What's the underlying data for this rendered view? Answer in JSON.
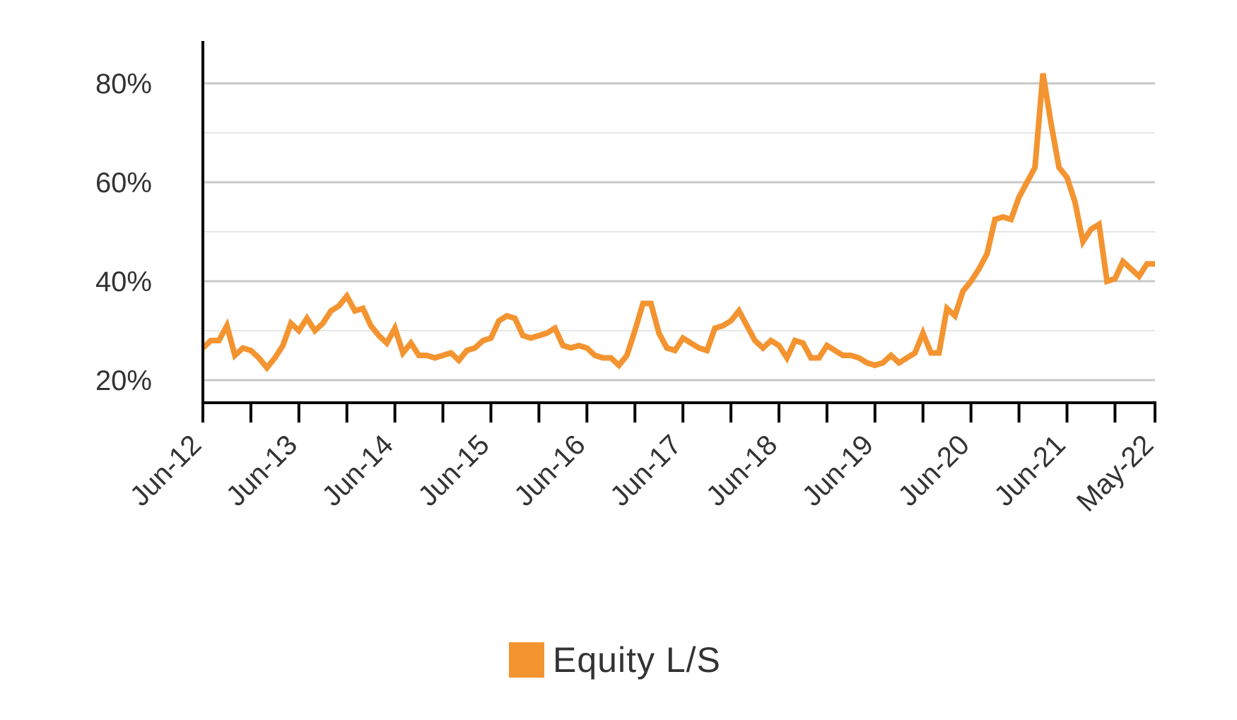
{
  "chart_data": {
    "type": "line",
    "title": "",
    "xlabel": "",
    "ylabel": "",
    "y_ticks": [
      "20%",
      "40%",
      "60%",
      "80%"
    ],
    "y_tick_values": [
      20,
      40,
      60,
      80
    ],
    "ylim": [
      15,
      88
    ],
    "x_tick_labels": [
      "Jun-12",
      "Jun-13",
      "Jun-14",
      "Jun-15",
      "Jun-16",
      "Jun-17",
      "Jun-18",
      "Jun-19",
      "Jun-20",
      "Jun-21",
      "May-22"
    ],
    "grid": true,
    "legend_position": "bottom-center",
    "series": [
      {
        "name": "Equity L/S",
        "color": "#F39430",
        "values": [
          26.5,
          28,
          28,
          31,
          25,
          26.5,
          26,
          24.5,
          22.5,
          24.5,
          27,
          31.5,
          30,
          32.5,
          30,
          31.5,
          34,
          35,
          37,
          34,
          34.5,
          31,
          29,
          27.5,
          30.5,
          25.5,
          27.5,
          25,
          25,
          24.5,
          25,
          25.5,
          24,
          26,
          26.5,
          28,
          28.5,
          32,
          33,
          32.5,
          29,
          28.5,
          29,
          29.5,
          30.5,
          27,
          26.5,
          27,
          26.5,
          25,
          24.5,
          24.5,
          23,
          25,
          30,
          35.5,
          35.5,
          29.5,
          26.5,
          26,
          28.5,
          27.5,
          26.5,
          26,
          30.5,
          31,
          32,
          34,
          31,
          28,
          26.5,
          28,
          27,
          24.5,
          28,
          27.5,
          24.5,
          24.5,
          27,
          26,
          25,
          25,
          24.5,
          23.5,
          23,
          23.5,
          25,
          23.5,
          24.5,
          25.5,
          29.5,
          25.5,
          25.5,
          34.5,
          33,
          38,
          40,
          42.5,
          45.5,
          52.5,
          53,
          52.5,
          57,
          60,
          63,
          82,
          72,
          63,
          61,
          56,
          48,
          50.5,
          51.5,
          40,
          40.5,
          44,
          42.5,
          41,
          43.5,
          43.5
        ]
      }
    ]
  }
}
